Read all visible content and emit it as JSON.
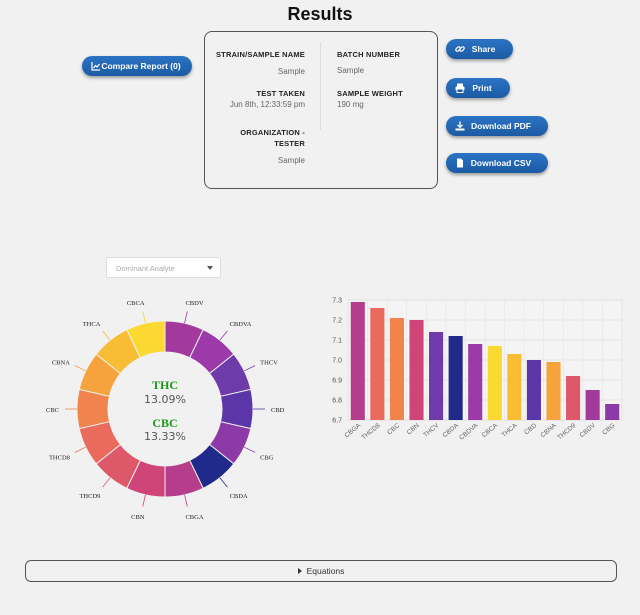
{
  "header": {
    "title": "Results"
  },
  "buttons": {
    "compare": "Compare Report (0)",
    "share": "Share",
    "print": "Print",
    "download_pdf": "Download PDF",
    "download_csv": "Download CSV"
  },
  "icons": {
    "compare": "chart-icon",
    "share": "link-icon",
    "print": "printer-icon",
    "download_pdf": "download-icon",
    "download_csv": "file-icon"
  },
  "info": {
    "strain_label": "STRAIN/SAMPLE NAME",
    "strain_value": "Sample",
    "batch_label": "BATCH NUMBER",
    "batch_value": "Sample",
    "test_label": "TEST TAKEN",
    "test_value": "Jun 8th, 12:33:59 pm",
    "weight_label": "SAMPLE WEIGHT",
    "weight_value": "190 mg",
    "org_label_line1": "ORGANIZATION -",
    "org_label_line2": "TESTER",
    "org_value": "Sample"
  },
  "select": {
    "placeholder": "Dominant Analyte"
  },
  "donut": {
    "center": [
      {
        "name": "THC",
        "value": "13.09%"
      },
      {
        "name": "CBC",
        "value": "13.33%"
      }
    ],
    "center_name_color": "#1a9a1a",
    "segments": [
      {
        "label": "CBDV",
        "color": "#a23a9e"
      },
      {
        "label": "CBDVA",
        "color": "#9b3aa8"
      },
      {
        "label": "THCV",
        "color": "#6f3aa9"
      },
      {
        "label": "CBD",
        "color": "#5b36a8"
      },
      {
        "label": "CBG",
        "color": "#8d3aa8"
      },
      {
        "label": "CBDA",
        "color": "#1f2a8a"
      },
      {
        "label": "CBGA",
        "color": "#b63d8b"
      },
      {
        "label": "CBN",
        "color": "#cf4577"
      },
      {
        "label": "THCD9",
        "color": "#dd596a"
      },
      {
        "label": "THCD8",
        "color": "#ea6a5c"
      },
      {
        "label": "CBC",
        "color": "#f0844c"
      },
      {
        "label": "CBNA",
        "color": "#f6a23d"
      },
      {
        "label": "THCA",
        "color": "#f8bc35"
      },
      {
        "label": "CBCA",
        "color": "#fbd832"
      }
    ]
  },
  "chart_data": {
    "type": "bar",
    "categories": [
      "CBGA",
      "THCD8",
      "CBC",
      "CBN",
      "THCV",
      "CBDA",
      "CBDVA",
      "CBCA",
      "THCA",
      "CBD",
      "CBNA",
      "THCD9",
      "CBDV",
      "CBG"
    ],
    "values": [
      7.29,
      7.26,
      7.21,
      7.2,
      7.14,
      7.12,
      7.08,
      7.07,
      7.03,
      7.0,
      6.99,
      6.92,
      6.85,
      6.78
    ],
    "colors": [
      "#b63d8b",
      "#ea6a5c",
      "#f0844c",
      "#cf4577",
      "#6f3aa9",
      "#1f2a8a",
      "#9b3aa8",
      "#fbd832",
      "#f8bc35",
      "#5b36a8",
      "#f6a23d",
      "#dd596a",
      "#a23a9e",
      "#8d3aa8"
    ],
    "ylim": [
      6.7,
      7.3
    ],
    "yticks": [
      "6.7",
      "6.8",
      "6.9",
      "7.0",
      "7.1",
      "7.2",
      "7.3"
    ],
    "grid": true
  },
  "footer": {
    "equations": "Equations"
  }
}
